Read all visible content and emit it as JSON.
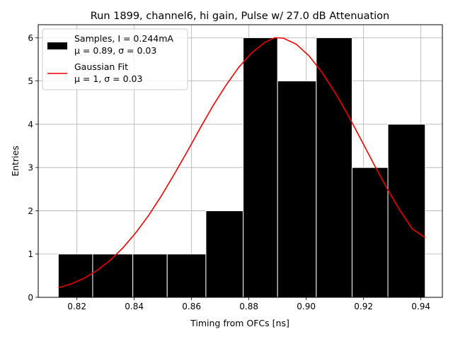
{
  "chart_data": {
    "type": "bar",
    "title": "Run 1899, channel6, hi gain, Pulse w/ 27.0 dB Attenuation",
    "xlabel": "Timing from OFCs [ns]",
    "ylabel": "Entries",
    "xlim": [
      0.8065,
      0.9475
    ],
    "ylim": [
      0,
      6.3
    ],
    "xticks": [
      0.82,
      0.84,
      0.86,
      0.88,
      0.9,
      0.92,
      0.94
    ],
    "xtick_labels": [
      "0.82",
      "0.84",
      "0.86",
      "0.88",
      "0.90",
      "0.92",
      "0.94"
    ],
    "yticks": [
      0,
      1,
      2,
      3,
      4,
      5,
      6
    ],
    "ytick_labels": [
      "0",
      "1",
      "2",
      "3",
      "4",
      "5",
      "6"
    ],
    "grid": true,
    "legend_position": "upper-left",
    "colors": {
      "bars": "#000000",
      "bar_edge": "#ffffff",
      "fit": "#ee0000",
      "grid": "#b0b0b0"
    },
    "histogram": {
      "name_line1": "Samples, I = 0.244mA",
      "name_line2": "μ = 0.89, σ = 0.03",
      "bin_edges": [
        0.8135,
        0.8255,
        0.8395,
        0.8515,
        0.865,
        0.878,
        0.89,
        0.9035,
        0.916,
        0.9285,
        0.9415
      ],
      "counts": [
        1,
        1,
        1,
        1,
        2,
        6,
        5,
        6,
        3,
        4
      ]
    },
    "fit": {
      "name_line1": "Gaussian Fit",
      "name_line2": "μ = 1, σ = 0.03",
      "x": [
        0.8135,
        0.818,
        0.8225,
        0.827,
        0.8315,
        0.836,
        0.8405,
        0.845,
        0.8495,
        0.854,
        0.8585,
        0.863,
        0.8675,
        0.872,
        0.8765,
        0.881,
        0.8855,
        0.889,
        0.892,
        0.8965,
        0.901,
        0.9055,
        0.91,
        0.9145,
        0.919,
        0.9235,
        0.928,
        0.9325,
        0.937,
        0.9415
      ],
      "y": [
        0.22,
        0.31,
        0.44,
        0.62,
        0.85,
        1.14,
        1.49,
        1.89,
        2.35,
        2.85,
        3.37,
        3.91,
        4.43,
        4.9,
        5.32,
        5.65,
        5.89,
        6.0,
        5.99,
        5.85,
        5.58,
        5.2,
        4.74,
        4.22,
        3.66,
        3.09,
        2.54,
        2.03,
        1.58,
        1.38
      ]
    }
  }
}
